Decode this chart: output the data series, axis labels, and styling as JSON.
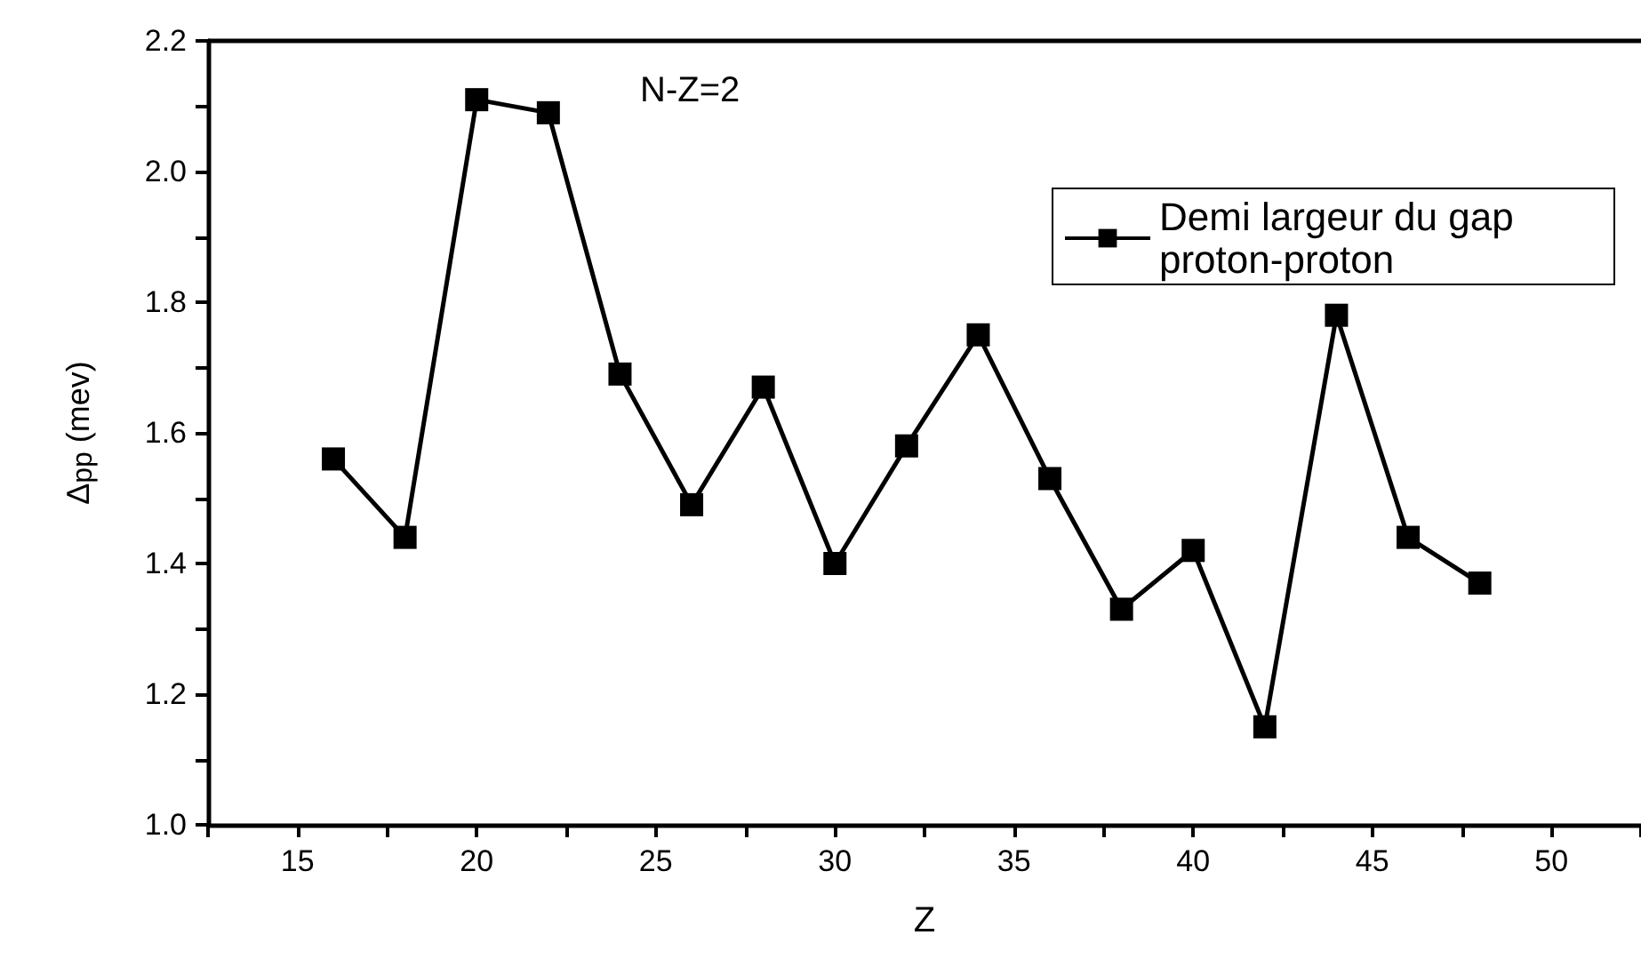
{
  "chart_data": {
    "type": "line",
    "xlabel": "Z",
    "ylabel": "Δ$_{pp}$ (mev)",
    "annotations": [
      "N-Z=2"
    ],
    "x": [
      16,
      18,
      20,
      22,
      24,
      26,
      28,
      30,
      32,
      34,
      36,
      38,
      40,
      42,
      44,
      46,
      48
    ],
    "series": [
      {
        "name": "Demi largeur du gap proton-proton",
        "color": "#000000",
        "values": [
          1.56,
          1.44,
          2.11,
          2.09,
          1.69,
          1.49,
          1.67,
          1.4,
          1.58,
          1.75,
          1.53,
          1.33,
          1.42,
          1.15,
          1.78,
          1.44,
          1.37
        ]
      }
    ],
    "xlim": [
      12.5,
      52.5
    ],
    "xticks": [
      {
        "value": 12.5,
        "label": null
      },
      15,
      {
        "value": 17.5,
        "label": null
      },
      20,
      {
        "value": 22.5,
        "label": null
      },
      25,
      {
        "value": 27.5,
        "label": null
      },
      30,
      {
        "value": 32.5,
        "label": null
      },
      35,
      {
        "value": 37.5,
        "label": null
      },
      40,
      {
        "value": 42.5,
        "label": null
      },
      45,
      {
        "value": 47.5,
        "label": null
      },
      50,
      {
        "value": 52.5,
        "label": null
      }
    ],
    "ylim": [
      1.0,
      2.2
    ],
    "yticks": [
      {
        "value": 1.0,
        "label": "1.0"
      },
      {
        "value": 1.1,
        "label": null
      },
      {
        "value": 1.2,
        "label": "1.2"
      },
      {
        "value": 1.3,
        "label": null
      },
      {
        "value": 1.4,
        "label": "1.4"
      },
      {
        "value": 1.5,
        "label": null
      },
      {
        "value": 1.6,
        "label": "1.6"
      },
      {
        "value": 1.7,
        "label": null
      },
      {
        "value": 1.8,
        "label": "1.8"
      },
      {
        "value": 1.9,
        "label": null
      },
      {
        "value": 2.0,
        "label": "2.0"
      },
      {
        "value": 2.1,
        "label": null
      },
      {
        "value": 2.2,
        "label": "2.2"
      }
    ],
    "grid": false,
    "legend": "top right",
    "marker": "square",
    "line_style": "solid"
  }
}
